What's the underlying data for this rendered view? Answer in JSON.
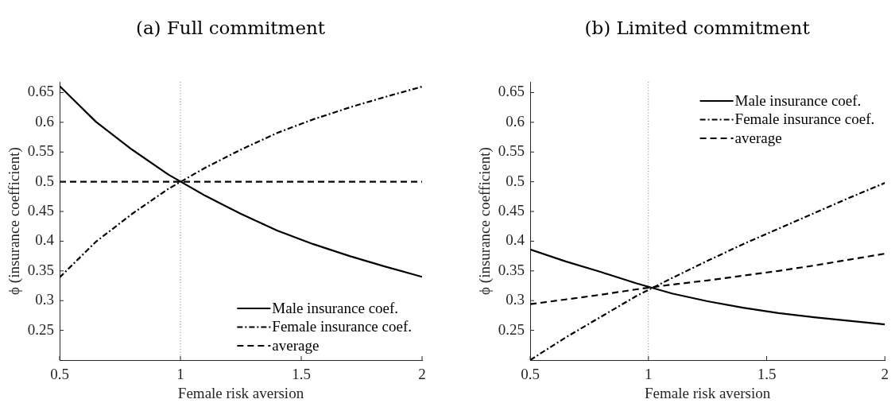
{
  "chart_data": [
    {
      "type": "line",
      "title": "(a) Full commitment",
      "xlabel": "Female risk aversion",
      "ylabel": "ϕ (insurance coefficient)",
      "x": [
        0.5,
        0.65,
        0.8,
        0.95,
        1.1,
        1.25,
        1.4,
        1.55,
        1.7,
        1.85,
        2
      ],
      "series": [
        {
          "name": "Male insurance coef.",
          "color": "#000000",
          "line_style": "solid",
          "values": [
            0.661,
            0.601,
            0.554,
            0.512,
            0.477,
            0.446,
            0.418,
            0.395,
            0.375,
            0.357,
            0.34
          ]
        },
        {
          "name": "Female insurance coef.",
          "color": "#000000",
          "line_style": "dashdot",
          "values": [
            0.339,
            0.399,
            0.446,
            0.488,
            0.523,
            0.554,
            0.582,
            0.605,
            0.625,
            0.643,
            0.66
          ]
        },
        {
          "name": "average",
          "color": "#000000",
          "line_style": "dashed",
          "values": [
            0.5,
            0.5,
            0.5,
            0.5,
            0.5,
            0.5,
            0.5,
            0.5,
            0.5,
            0.5,
            0.5
          ]
        }
      ],
      "xlim": [
        0.5,
        2
      ],
      "xticks": [
        0.5,
        1,
        1.5,
        2
      ],
      "ylim": [
        0.2,
        0.668
      ],
      "yticks": [
        0.25,
        0.3,
        0.35,
        0.4,
        0.45,
        0.5,
        0.55,
        0.6,
        0.65
      ],
      "grid": false,
      "legend": "bottom right",
      "marker": "none",
      "ref_lines": [
        {
          "axis": "x",
          "value": 1,
          "color": "#808080",
          "line_style": "dotted"
        }
      ]
    },
    {
      "type": "line",
      "title": "(b) Limited commitment",
      "xlabel": "Female risk aversion",
      "ylabel": "ϕ (insurance coefficient)",
      "x": [
        0.5,
        0.65,
        0.8,
        0.95,
        1.1,
        1.25,
        1.4,
        1.55,
        1.7,
        1.85,
        2
      ],
      "series": [
        {
          "name": "Male insurance coef.",
          "color": "#000000",
          "line_style": "solid",
          "values": [
            0.386,
            0.366,
            0.348,
            0.329,
            0.312,
            0.299,
            0.288,
            0.279,
            0.272,
            0.266,
            0.26
          ]
        },
        {
          "name": "Female insurance coef.",
          "color": "#000000",
          "line_style": "dashdot",
          "values": [
            0.2,
            0.238,
            0.273,
            0.308,
            0.338,
            0.367,
            0.395,
            0.421,
            0.447,
            0.473,
            0.498
          ]
        },
        {
          "name": "average",
          "color": "#000000",
          "line_style": "dashed",
          "values": [
            0.294,
            0.302,
            0.31,
            0.319,
            0.327,
            0.334,
            0.342,
            0.35,
            0.359,
            0.369,
            0.379
          ]
        }
      ],
      "xlim": [
        0.5,
        2
      ],
      "xticks": [
        0.5,
        1,
        1.5,
        2
      ],
      "ylim": [
        0.2,
        0.668
      ],
      "yticks": [
        0.25,
        0.3,
        0.35,
        0.4,
        0.45,
        0.5,
        0.55,
        0.6,
        0.65
      ],
      "grid": false,
      "legend": "top right",
      "marker": "none",
      "ref_lines": [
        {
          "axis": "x",
          "value": 1,
          "color": "#808080",
          "line_style": "dotted"
        }
      ]
    }
  ]
}
